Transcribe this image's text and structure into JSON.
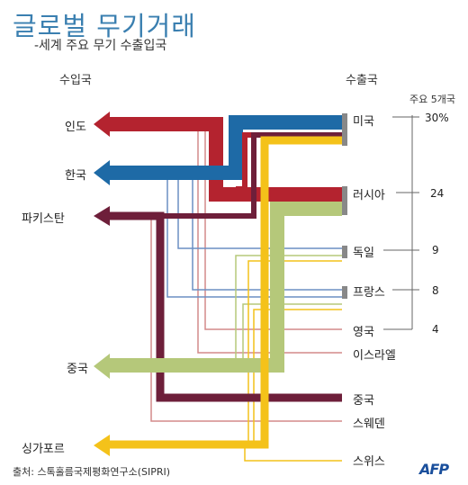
{
  "title": "글로벌 무기거래",
  "subtitle": "-세계 주요 무기 수출입국",
  "importer_header": "수입국",
  "exporter_header": "수출국",
  "share_header": "주요 5개국",
  "importers": [
    "인도",
    "한국",
    "파키스탄",
    "중국",
    "싱가포르"
  ],
  "exporters": [
    "미국",
    "러시아",
    "독일",
    "프랑스",
    "영국",
    "이스라엘",
    "중국",
    "스웨덴",
    "스위스"
  ],
  "shares": [
    "30%",
    "24",
    "9",
    "8",
    "4"
  ],
  "source": "출처: 스톡홀름국제평화연구소(SIPRI)",
  "logo": "AFP",
  "colors": {
    "usa": "#1e6aa6",
    "russia": "#b4232f",
    "china": "#6e1f3a",
    "germany": "#b5c87a",
    "france": "#6b8fc4",
    "uk": "#d48a8a",
    "yellow": "#f4c21a",
    "bracket": "#888888"
  }
}
